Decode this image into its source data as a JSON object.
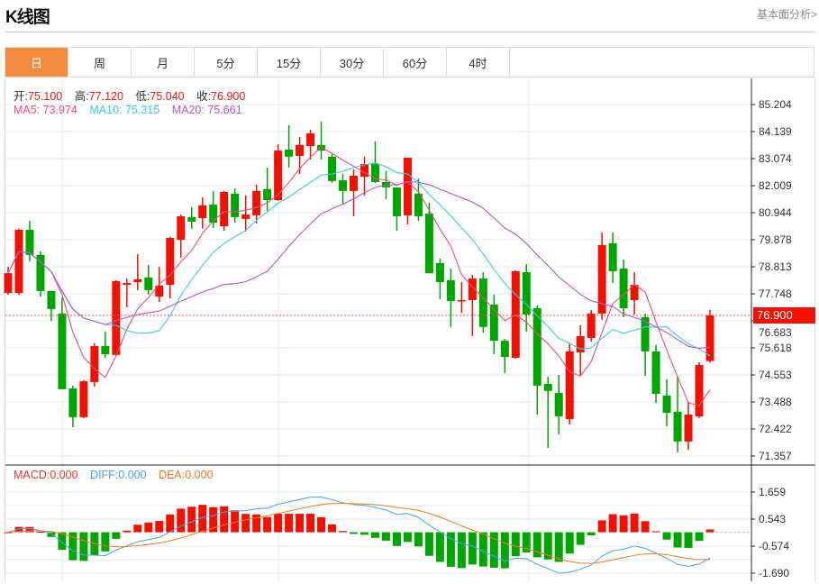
{
  "header": {
    "title": "K线图",
    "link": "基本面分析>"
  },
  "tabs": [
    {
      "label": "日",
      "active": true
    },
    {
      "label": "周"
    },
    {
      "label": "月"
    },
    {
      "label": "5分"
    },
    {
      "label": "15分"
    },
    {
      "label": "30分"
    },
    {
      "label": "60分"
    },
    {
      "label": "4时"
    }
  ],
  "legend": {
    "open_label": "开:",
    "open": "75.100",
    "high_label": "高:",
    "high": "77.120",
    "low_label": "低:",
    "low": "75.040",
    "close_label": "收:",
    "close": "76.900",
    "ma5": "MA5: 73.974",
    "ma10": "MA10: 75.315",
    "ma20": "MA20: 75.661",
    "macd": "MACD:0.000",
    "diff": "DIFF:0.000",
    "dea": "DEA:0.000"
  },
  "current_price": "76.900",
  "colors": {
    "up": "#f21000",
    "down": "#00a600",
    "ma5": "#ee4c7f",
    "ma10": "#3fcbe0",
    "ma20": "#b05ac8",
    "diff": "#4aa3f0",
    "dea": "#f07b22",
    "accent": "#f38b3f"
  },
  "chart_data": {
    "type": "candlestick",
    "price_ticks": [
      "85.204",
      "84.139",
      "83.074",
      "82.009",
      "80.944",
      "79.878",
      "78.813",
      "77.748",
      "76.683",
      "75.618",
      "74.553",
      "73.488",
      "72.422",
      "71.357"
    ],
    "price_range": [
      71.357,
      85.204
    ],
    "macd_ticks": [
      "1.659",
      "0.543",
      "-0.574",
      "-1.690"
    ],
    "macd_range": [
      -1.69,
      1.659
    ],
    "ohlc": [
      [
        77.78,
        78.56,
        78.81,
        77.71
      ],
      [
        77.78,
        80.27,
        80.31,
        77.71
      ],
      [
        80.27,
        79.28,
        80.62,
        79.02
      ],
      [
        79.28,
        77.86,
        79.42,
        77.64
      ],
      [
        77.86,
        77.15,
        77.86,
        76.68
      ],
      [
        76.97,
        73.99,
        77.61,
        73.99
      ],
      [
        74.02,
        72.89,
        74.13,
        72.49
      ],
      [
        72.89,
        74.3,
        74.34,
        72.85
      ],
      [
        74.27,
        75.69,
        75.8,
        74.09
      ],
      [
        75.69,
        75.37,
        76.26,
        75.23
      ],
      [
        75.34,
        78.25,
        78.28,
        75.3
      ],
      [
        78.1,
        78.17,
        78.35,
        77.22
      ],
      [
        78.21,
        78.32,
        79.31,
        77.89
      ],
      [
        78.39,
        77.89,
        78.89,
        77.71
      ],
      [
        77.64,
        78.07,
        78.81,
        77.43
      ],
      [
        78.1,
        79.95,
        79.99,
        77.57
      ],
      [
        79.88,
        80.8,
        80.87,
        79.17
      ],
      [
        80.77,
        80.59,
        81.16,
        80.31
      ],
      [
        80.73,
        81.23,
        81.55,
        80.31
      ],
      [
        81.26,
        80.55,
        81.8,
        80.34
      ],
      [
        80.41,
        81.76,
        81.8,
        80.23
      ],
      [
        81.69,
        80.77,
        81.9,
        80.55
      ],
      [
        80.7,
        80.87,
        81.62,
        80.2
      ],
      [
        80.84,
        81.8,
        82.05,
        80.52
      ],
      [
        81.87,
        81.44,
        82.72,
        81.01
      ],
      [
        81.44,
        83.39,
        83.64,
        81.41
      ],
      [
        83.43,
        83.15,
        84.39,
        82.72
      ],
      [
        83.18,
        83.61,
        83.93,
        82.47
      ],
      [
        83.57,
        84.07,
        84.21,
        83.04
      ],
      [
        83.61,
        83.39,
        84.53,
        83.04
      ],
      [
        83.15,
        82.19,
        83.29,
        82.12
      ],
      [
        82.22,
        81.8,
        82.47,
        81.26
      ],
      [
        81.8,
        82.4,
        82.65,
        80.8
      ],
      [
        82.36,
        82.86,
        83.15,
        81.62
      ],
      [
        82.86,
        82.15,
        83.75,
        82.12
      ],
      [
        82.15,
        81.94,
        82.58,
        81.48
      ],
      [
        81.94,
        80.8,
        81.94,
        80.23
      ],
      [
        80.84,
        83.11,
        83.11,
        80.48
      ],
      [
        81.69,
        80.8,
        82.29,
        80.62
      ],
      [
        80.91,
        78.56,
        81.34,
        78.56
      ],
      [
        78.96,
        78.21,
        79.13,
        77.54
      ],
      [
        78.28,
        77.46,
        78.74,
        76.44
      ],
      [
        77.46,
        77.5,
        78.21,
        77.0
      ],
      [
        77.5,
        78.35,
        78.49,
        76.08
      ],
      [
        78.35,
        76.44,
        78.6,
        76.22
      ],
      [
        77.32,
        75.9,
        77.71,
        75.37
      ],
      [
        75.9,
        75.26,
        75.97,
        74.62
      ],
      [
        75.23,
        78.64,
        78.67,
        75.19
      ],
      [
        78.6,
        76.93,
        78.92,
        76.26
      ],
      [
        77.18,
        74.13,
        77.29,
        72.99
      ],
      [
        74.2,
        73.92,
        74.48,
        71.68
      ],
      [
        73.84,
        72.92,
        74.55,
        72.21
      ],
      [
        72.81,
        75.48,
        75.8,
        72.6
      ],
      [
        75.44,
        76.08,
        76.51,
        74.55
      ],
      [
        76.01,
        76.97,
        77.11,
        75.87
      ],
      [
        76.97,
        79.67,
        80.16,
        76.72
      ],
      [
        79.74,
        78.64,
        80.16,
        78.17
      ],
      [
        78.74,
        77.18,
        79.1,
        76.83
      ],
      [
        77.5,
        78.1,
        78.6,
        76.93
      ],
      [
        76.83,
        75.48,
        76.97,
        74.52
      ],
      [
        75.48,
        73.81,
        75.73,
        73.45
      ],
      [
        73.74,
        73.06,
        74.38,
        72.53
      ],
      [
        73.1,
        71.93,
        74.48,
        71.5
      ],
      [
        71.93,
        72.99,
        73.49,
        71.6
      ],
      [
        72.92,
        74.94,
        75.05,
        72.85
      ],
      [
        75.1,
        76.9,
        77.12,
        75.04
      ]
    ]
  }
}
